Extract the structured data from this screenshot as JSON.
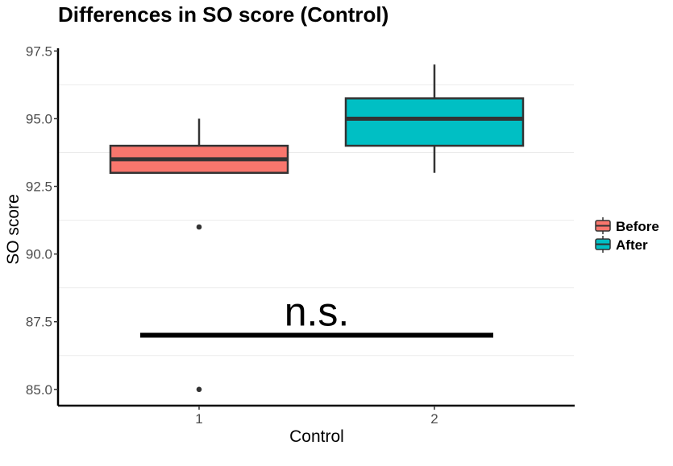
{
  "chart_data": {
    "type": "boxplot",
    "title": "Differences in SO score (Control)",
    "xlabel": "Control",
    "ylabel": "SO score",
    "categories": [
      "1",
      "2"
    ],
    "ylim": [
      84.4,
      97.6
    ],
    "yticks": [
      "85.0",
      "87.5",
      "90.0",
      "92.5",
      "95.0",
      "97.5"
    ],
    "ytick_values": [
      85.0,
      87.5,
      90.0,
      92.5,
      95.0,
      97.5
    ],
    "grid": true,
    "legend_position": "right",
    "series": [
      {
        "name": "Before",
        "color": "#F8766D",
        "category": "1",
        "whisker_low": 93.0,
        "q1": 93.0,
        "median": 93.5,
        "q3": 94.0,
        "whisker_high": 95.0,
        "outliers": [
          91.0,
          85.0
        ]
      },
      {
        "name": "After",
        "color": "#00BFC4",
        "category": "2",
        "whisker_low": 93.0,
        "q1": 94.0,
        "median": 95.0,
        "q3": 95.75,
        "whisker_high": 97.0,
        "outliers": []
      }
    ],
    "annotation": {
      "text": "n.s.",
      "line_y": 87.0,
      "x_from": 0.75,
      "x_to": 2.25
    }
  }
}
